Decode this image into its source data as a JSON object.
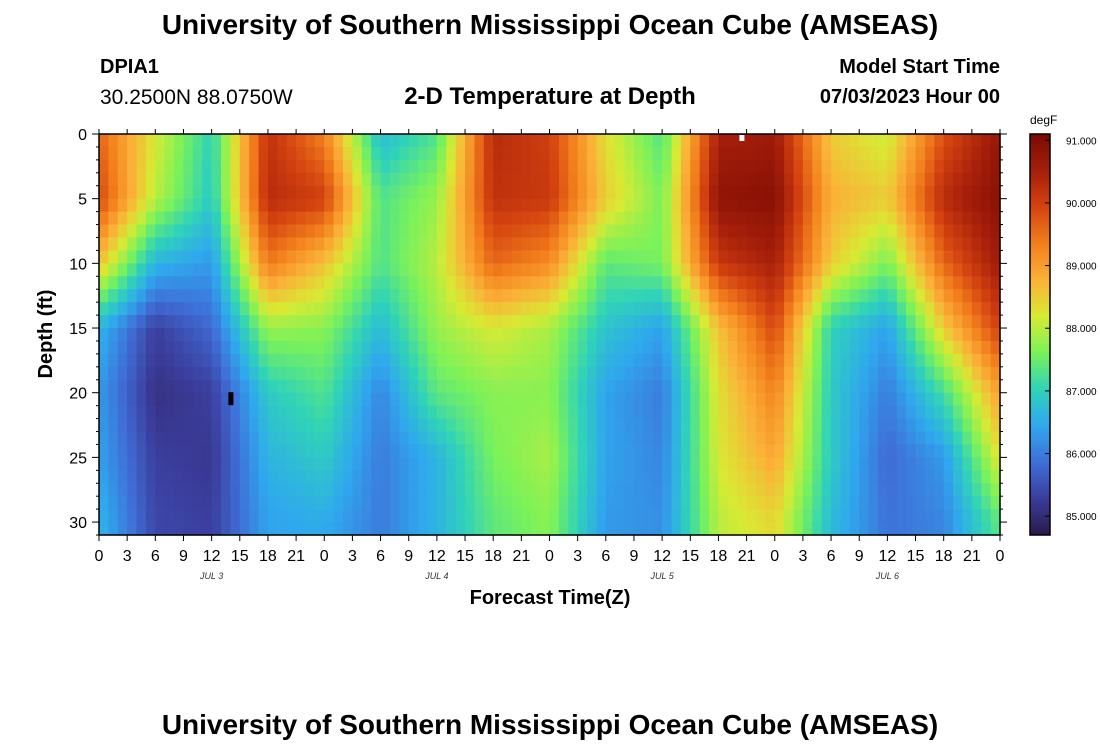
{
  "header": {
    "title": "University of Southern Mississippi Ocean Cube (AMSEAS)",
    "station": "DPIA1",
    "coords": "30.2500N  88.0750W",
    "subtitle": "2-D Temperature at Depth",
    "model_start_label": "Model Start Time",
    "model_start_value": "07/03/2023 Hour 00"
  },
  "footer": {
    "title": "University of Southern Mississippi Ocean Cube (AMSEAS)"
  },
  "colorbar": {
    "unit": "degF",
    "ticks": [
      "85.000",
      "86.000",
      "87.000",
      "88.000",
      "89.000",
      "90.000",
      "91.000"
    ],
    "min": 84.7,
    "max": 91.1,
    "colors": [
      "#2a1b4a",
      "#3b3d9c",
      "#3f6fd8",
      "#2fa8ee",
      "#30d3b8",
      "#7af25a",
      "#d8ea33",
      "#fbb138",
      "#f27f1c",
      "#d44310",
      "#a51e0a",
      "#7a0a03"
    ]
  },
  "chart_data": {
    "type": "heatmap",
    "title": "2-D Temperature at Depth",
    "xlabel": "Forecast Time(Z)",
    "ylabel": "Depth (ft)",
    "xlim_hours": [
      0,
      96
    ],
    "ylim_ft": [
      0,
      31
    ],
    "x_tick_labels": [
      "0",
      "3",
      "6",
      "9",
      "12",
      "15",
      "18",
      "21",
      "0",
      "3",
      "6",
      "9",
      "12",
      "15",
      "18",
      "21",
      "0",
      "3",
      "6",
      "9",
      "12",
      "15",
      "18",
      "21",
      "0",
      "3",
      "6",
      "9",
      "12",
      "15",
      "18",
      "21",
      "0"
    ],
    "date_labels": [
      "JUL 3",
      "JUL 4",
      "JUL 5",
      "JUL 6"
    ],
    "y_ticks": [
      0,
      5,
      10,
      15,
      20,
      25,
      30
    ],
    "z_unit": "degF",
    "z_range": [
      84.7,
      91.1
    ],
    "time_hours": [
      0,
      6,
      12,
      18,
      24,
      30,
      36,
      42,
      48,
      54,
      60,
      66,
      72,
      78,
      84,
      90,
      96
    ],
    "depth_ft": [
      0,
      5,
      10,
      15,
      20,
      25,
      30
    ],
    "temperature": [
      [
        89.6,
        88.2,
        87.0,
        90.2,
        89.3,
        86.7,
        87.3,
        90.3,
        90.0,
        88.3,
        87.3,
        90.5,
        90.6,
        88.5,
        88.1,
        89.8,
        90.7
      ],
      [
        89.9,
        88.0,
        86.9,
        90.3,
        90.0,
        87.3,
        87.8,
        90.2,
        90.1,
        88.5,
        87.6,
        90.8,
        90.9,
        88.8,
        88.5,
        90.3,
        90.9
      ],
      [
        88.6,
        86.6,
        86.3,
        89.4,
        88.6,
        87.3,
        88.0,
        89.6,
        89.2,
        87.4,
        87.6,
        90.1,
        90.5,
        88.5,
        87.6,
        89.6,
        90.6
      ],
      [
        86.6,
        85.3,
        85.8,
        87.8,
        87.7,
        86.7,
        87.8,
        88.2,
        87.9,
        86.8,
        86.4,
        88.6,
        89.9,
        87.0,
        86.4,
        88.5,
        90.0
      ],
      [
        86.3,
        85.1,
        85.3,
        86.9,
        87.3,
        86.1,
        87.4,
        87.7,
        87.7,
        86.4,
        86.0,
        88.3,
        89.3,
        86.9,
        86.0,
        87.2,
        89.0
      ],
      [
        86.4,
        85.3,
        85.2,
        86.6,
        86.9,
        86.0,
        86.6,
        87.6,
        87.9,
        86.4,
        86.1,
        88.2,
        88.9,
        86.9,
        85.8,
        86.3,
        88.3
      ],
      [
        86.6,
        85.4,
        85.3,
        86.4,
        86.5,
        86.0,
        86.6,
        87.4,
        87.7,
        86.3,
        86.2,
        88.0,
        88.4,
        86.7,
        85.9,
        86.1,
        87.4
      ]
    ],
    "annotations": [
      "black marker near 14Z Jul 3 at ~21 ft",
      "white marker near 20Z Jul 5 at surface"
    ]
  }
}
